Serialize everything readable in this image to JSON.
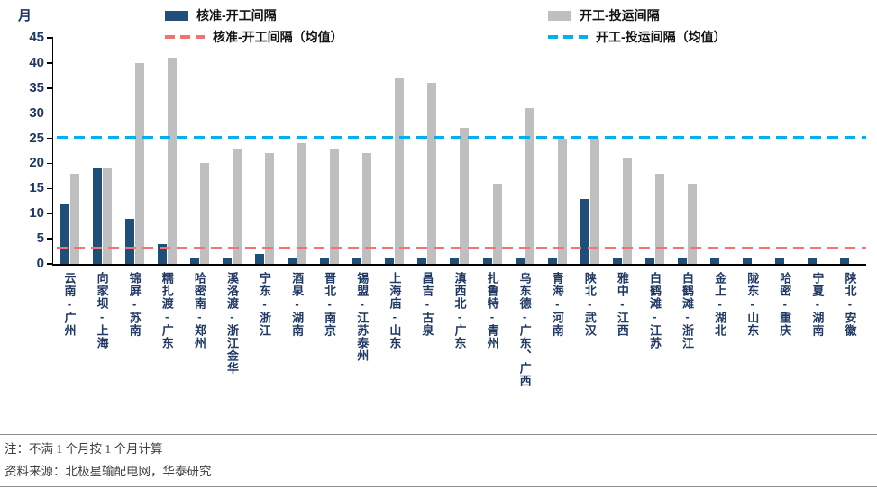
{
  "chart_data": {
    "type": "bar",
    "title": "",
    "xlabel": "",
    "ylabel": "月",
    "ylim": [
      0,
      45
    ],
    "yticks": [
      0,
      5,
      10,
      15,
      20,
      25,
      30,
      35,
      40,
      45
    ],
    "grid": false,
    "legend_position": "top",
    "categories": [
      "云南-广州",
      "向家坝-上海",
      "锦屏-苏南",
      "糯扎渡-广东",
      "哈密南-郑州",
      "溪洛渡-浙江金华",
      "宁东-浙江",
      "酒泉-湖南",
      "晋北-南京",
      "锡盟-江苏泰州",
      "上海庙-山东",
      "昌吉-古泉",
      "滇西北-广东",
      "扎鲁特-青州",
      "乌东德-广东、广西",
      "青海-河南",
      "陕北-武汉",
      "雅中-江西",
      "白鹤滩-江苏",
      "白鹤滩-浙江",
      "金上-湖北",
      "陇东-山东",
      "哈密-重庆",
      "宁夏-湖南",
      "陕北-安徽"
    ],
    "series": [
      {
        "name": "核准-开工间隔",
        "color": "#1f4e79",
        "values": [
          12,
          19,
          9,
          4,
          1,
          1,
          2,
          1,
          1,
          1,
          1,
          1,
          1,
          1,
          1,
          1,
          13,
          1,
          1,
          1,
          1,
          1,
          1,
          1,
          1
        ]
      },
      {
        "name": "开工-投运间隔",
        "color": "#bfbfbf",
        "values": [
          18,
          19,
          40,
          41,
          20,
          23,
          22,
          24,
          23,
          22,
          37,
          36,
          27,
          16,
          31,
          25,
          25,
          21,
          18,
          16,
          0,
          0,
          0,
          0,
          0
        ]
      }
    ],
    "avg_lines": [
      {
        "name": "核准-开工间隔（均值）",
        "color": "#f4736f",
        "value": 3.1
      },
      {
        "name": "开工-投运间隔（均值）",
        "color": "#00b0f0",
        "value": 25.2
      }
    ]
  },
  "notes": {
    "note": "注：不满 1 个月按 1 个月计算",
    "source": "资料来源：北极星输配电网，华泰研究"
  }
}
